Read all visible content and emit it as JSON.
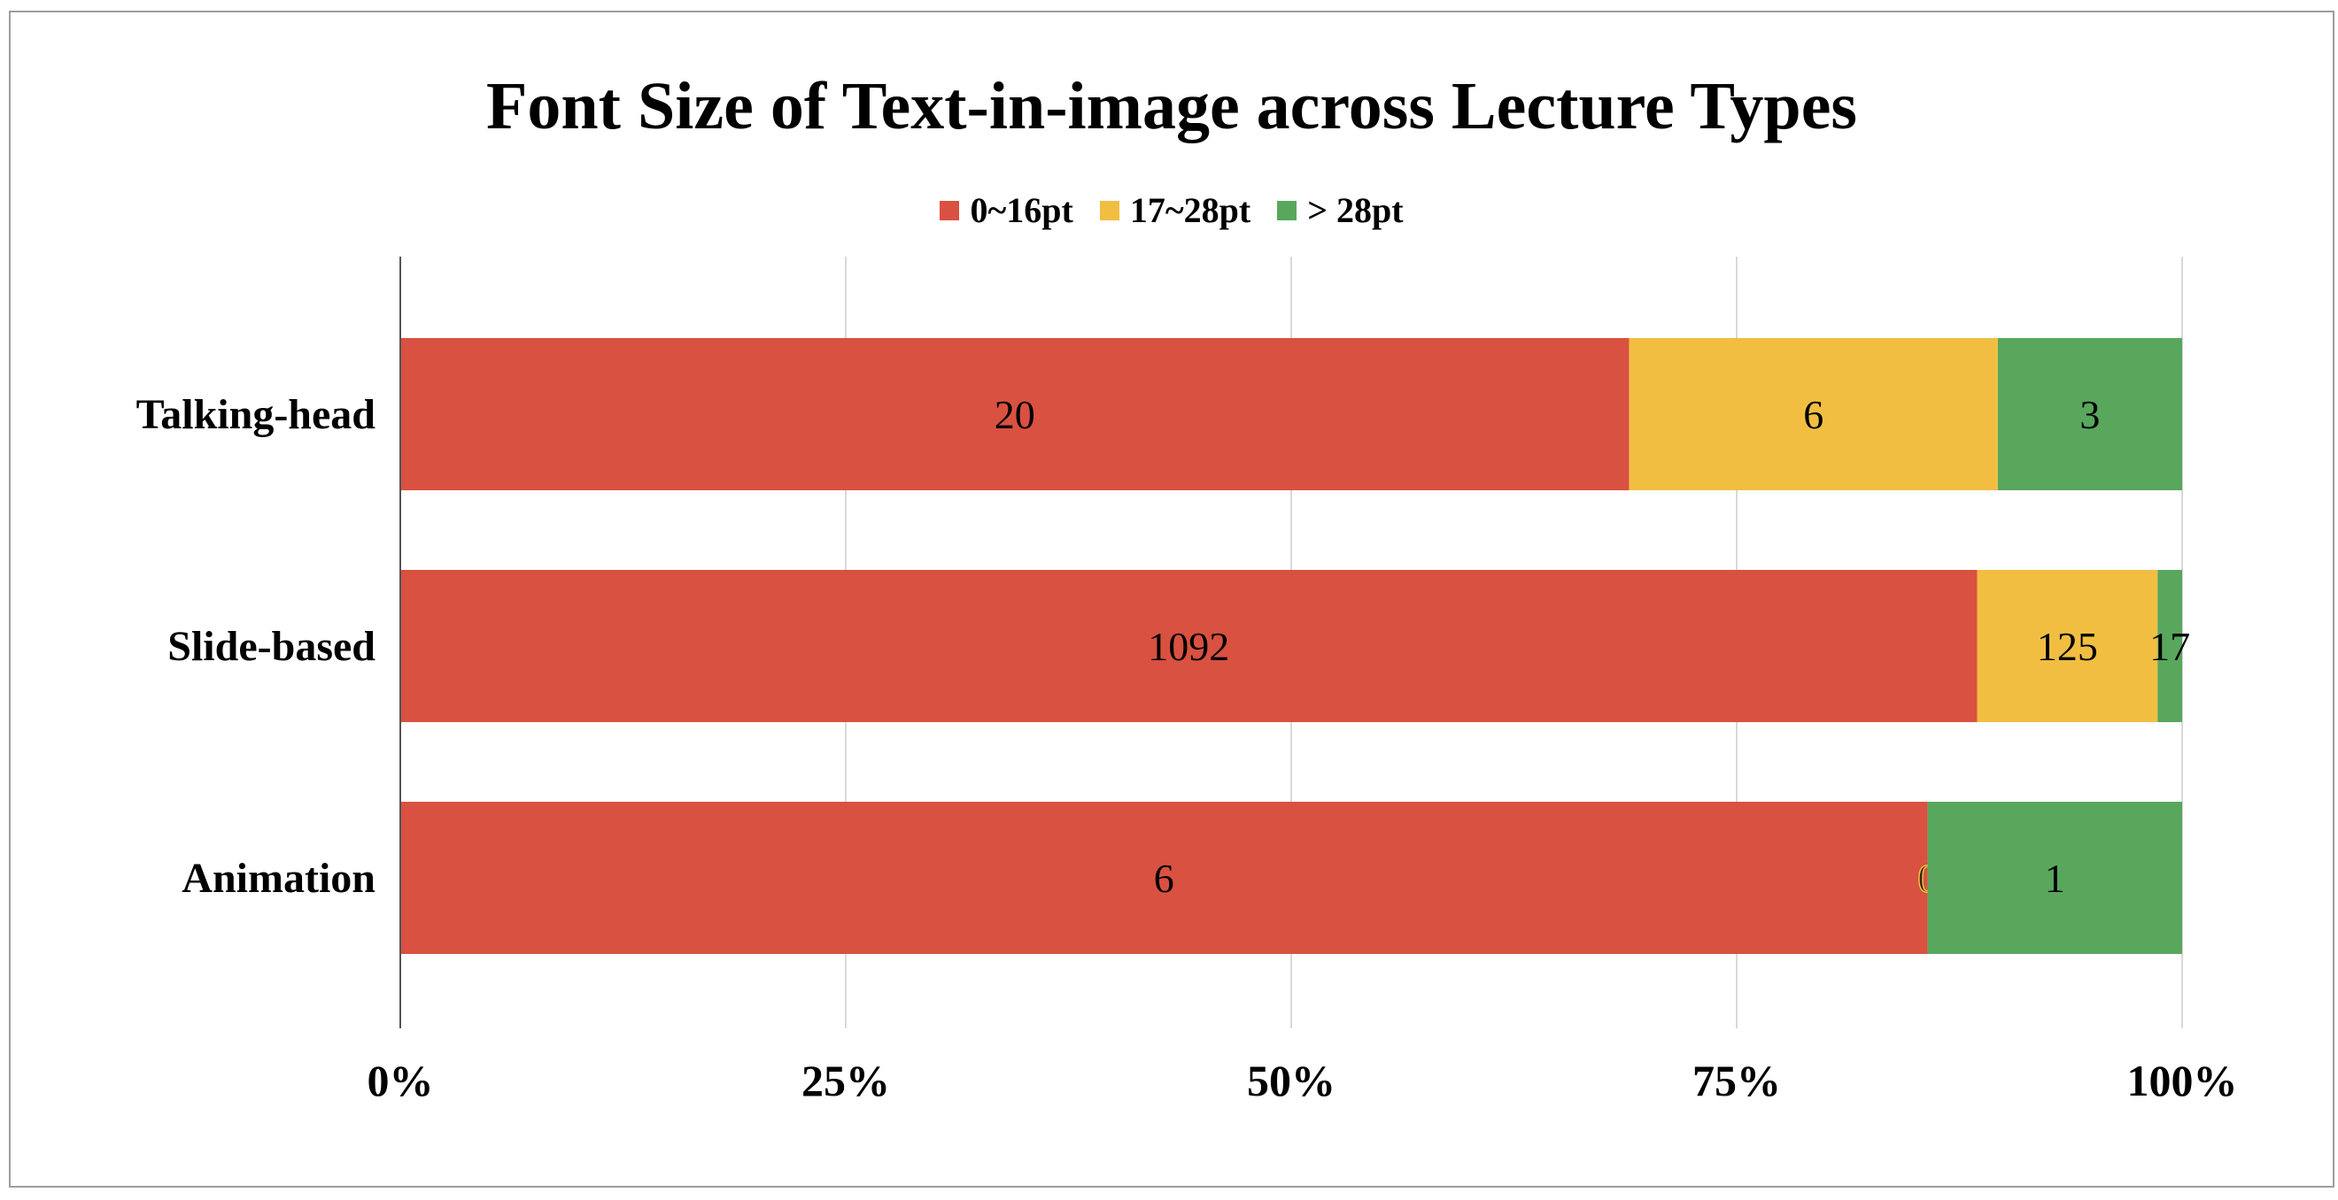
{
  "chart_data": {
    "type": "bar",
    "orientation": "horizontal",
    "stacked": "percent",
    "title": "Font Size of Text-in-image across Lecture Types",
    "categories": [
      "Talking-head",
      "Slide-based",
      "Animation"
    ],
    "series": [
      {
        "name": "0~16pt",
        "values": [
          20,
          1092,
          6
        ],
        "color": "#d95140"
      },
      {
        "name": "17~28pt",
        "values": [
          6,
          125,
          0
        ],
        "color": "#f1be42"
      },
      {
        "name": "> 28pt",
        "values": [
          3,
          17,
          1
        ],
        "color": "#58a75d"
      }
    ],
    "x_ticks": [
      "0%",
      "25%",
      "50%",
      "75%",
      "100%"
    ],
    "xlim": [
      0,
      100
    ],
    "grid": true,
    "legend_position": "top"
  }
}
